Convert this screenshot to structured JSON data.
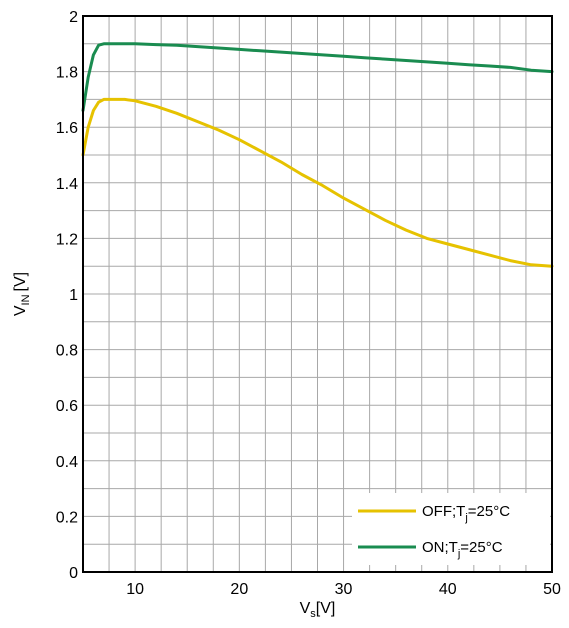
{
  "chart_data": {
    "type": "line",
    "title": "",
    "xlabel": {
      "main": "V",
      "sub": "s",
      "unit": "[V]"
    },
    "ylabel": {
      "main": "V",
      "sub": "IN",
      "unit": "[V]"
    },
    "xlim": [
      5,
      50
    ],
    "ylim": [
      0,
      2
    ],
    "x_major_ticks": [
      10,
      20,
      30,
      40,
      50
    ],
    "x_tick_labels": [
      "10",
      "20",
      "30",
      "40",
      "50"
    ],
    "y_major_ticks": [
      0,
      0.2,
      0.4,
      0.6,
      0.8,
      1,
      1.2,
      1.4,
      1.6,
      1.8,
      2
    ],
    "y_tick_labels": [
      "0",
      "0.2",
      "0.4",
      "0.6",
      "0.8",
      "1",
      "1.2",
      "1.4",
      "1.6",
      "1.8",
      "2"
    ],
    "x_minor_step": 2.5,
    "y_minor_step": 0.1,
    "grid": true,
    "legend_position": "bottom-right",
    "series": [
      {
        "name": "OFF;Tj=25°C",
        "legend": {
          "pre": "OFF;T",
          "sub": "j",
          "post": "=25°C"
        },
        "color": "#e6c200",
        "x": [
          5,
          5.5,
          6,
          6.5,
          7,
          8,
          9,
          10,
          12,
          14,
          16,
          18,
          20,
          22,
          24,
          26,
          28,
          30,
          32,
          34,
          36,
          38,
          40,
          42,
          44,
          46,
          48,
          50
        ],
        "y": [
          1.5,
          1.6,
          1.66,
          1.69,
          1.7,
          1.7,
          1.7,
          1.695,
          1.675,
          1.65,
          1.62,
          1.59,
          1.555,
          1.515,
          1.475,
          1.43,
          1.39,
          1.345,
          1.305,
          1.265,
          1.23,
          1.2,
          1.18,
          1.16,
          1.14,
          1.12,
          1.105,
          1.1
        ]
      },
      {
        "name": "ON;Tj=25°C",
        "legend": {
          "pre": "ON;T",
          "sub": "j",
          "post": "=25°C"
        },
        "color": "#1a8c50",
        "x": [
          5,
          5.5,
          6,
          6.5,
          7,
          8,
          10,
          12,
          14,
          16,
          18,
          20,
          22,
          24,
          26,
          28,
          30,
          32,
          34,
          36,
          38,
          40,
          42,
          44,
          46,
          48,
          50
        ],
        "y": [
          1.66,
          1.78,
          1.86,
          1.895,
          1.9,
          1.9,
          1.9,
          1.897,
          1.895,
          1.89,
          1.885,
          1.88,
          1.875,
          1.87,
          1.865,
          1.86,
          1.855,
          1.85,
          1.845,
          1.84,
          1.835,
          1.83,
          1.825,
          1.82,
          1.815,
          1.805,
          1.8
        ]
      }
    ]
  }
}
